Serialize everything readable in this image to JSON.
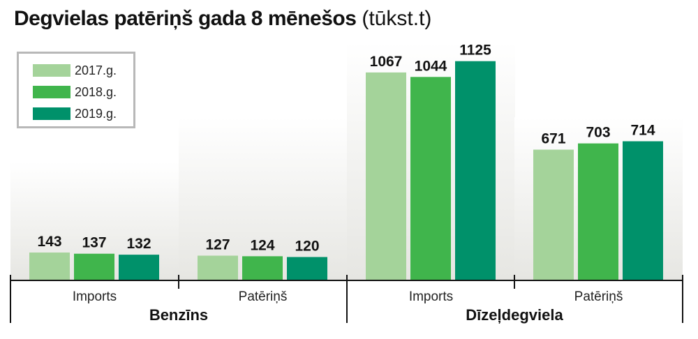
{
  "title": "Degvielas patēriņš gada 8 mēnešos",
  "unit": "(tūkst.t)",
  "colors": {
    "2017.g.": "#a4d39a",
    "2018.g.": "#40b54c",
    "2019.g.": "#00916a"
  },
  "legend_position": "top-left",
  "chart_data": {
    "type": "bar",
    "title": "Degvielas patēriņš gada 8 mēnešos",
    "unit": "(tūkst.t)",
    "groups": [
      "Benzīns",
      "Dīzeļdegviela"
    ],
    "categories": [
      "Imports",
      "Patēriņš",
      "Imports",
      "Patēriņš"
    ],
    "category_group": [
      "Benzīns",
      "Benzīns",
      "Dīzeļdegviela",
      "Dīzeļdegviela"
    ],
    "ylim": [
      0,
      1200
    ],
    "series": [
      {
        "name": "2017.g.",
        "values": [
          143,
          127,
          1067,
          671
        ]
      },
      {
        "name": "2018.g.",
        "values": [
          137,
          124,
          1044,
          703
        ]
      },
      {
        "name": "2019.g.",
        "values": [
          132,
          120,
          1125,
          714
        ]
      }
    ]
  }
}
